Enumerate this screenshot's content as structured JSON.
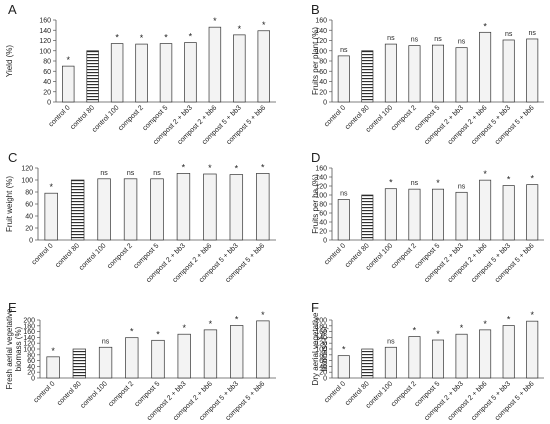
{
  "chart_data": [
    {
      "type": "bar",
      "panel_letter": "A",
      "ylabel": "Yield (%)",
      "ylim": [
        0,
        160
      ],
      "yticks": [
        0,
        20,
        40,
        60,
        80,
        100,
        120,
        140,
        160
      ],
      "categories": [
        "control 0",
        "control 80",
        "control 100",
        "compost 2",
        "compost 5",
        "compost 2 + bb3",
        "compost 2 + bb6",
        "compost 5 + bb3",
        "compost 5 + bb6"
      ],
      "values": [
        70,
        100,
        114,
        113,
        114,
        116,
        146,
        131,
        139
      ],
      "annotations": [
        "*",
        "",
        "*",
        "*",
        "*",
        "*",
        "*",
        "*",
        "*"
      ]
    },
    {
      "type": "bar",
      "panel_letter": "B",
      "ylabel": "Fruits per plant (%)",
      "ylim": [
        0,
        160
      ],
      "yticks": [
        0,
        20,
        40,
        60,
        80,
        100,
        120,
        140,
        160
      ],
      "categories": [
        "control 0",
        "control 80",
        "control 100",
        "compost 2",
        "compost 5",
        "compost 2 + bb3",
        "compost 2 + bb6",
        "compost 5 + bb3",
        "compost 5 + bb6"
      ],
      "values": [
        90,
        100,
        113,
        110,
        111,
        106,
        136,
        121,
        123
      ],
      "annotations": [
        "ns",
        "",
        "ns",
        "ns",
        "ns",
        "ns",
        "*",
        "ns",
        "ns"
      ]
    },
    {
      "type": "bar",
      "panel_letter": "C",
      "ylabel": "Fruit weight (%)",
      "ylim": [
        0,
        120
      ],
      "yticks": [
        0,
        20,
        40,
        60,
        80,
        100,
        120
      ],
      "categories": [
        "control 0",
        "control 80",
        "control 100",
        "compost 2",
        "compost 5",
        "compost 2 + bb3",
        "compost 2 + bb6",
        "compost 5 + bb3",
        "compost 5 + bb6"
      ],
      "values": [
        78,
        100,
        102,
        102,
        102,
        111,
        110,
        109,
        111
      ],
      "annotations": [
        "*",
        "",
        "ns",
        "ns",
        "ns",
        "*",
        "*",
        "*",
        "*"
      ]
    },
    {
      "type": "bar",
      "panel_letter": "D",
      "ylabel": "Fruits per  ha (%)",
      "ylim": [
        0,
        160
      ],
      "yticks": [
        0,
        20,
        40,
        60,
        80,
        100,
        120,
        140,
        160
      ],
      "categories": [
        "control 0",
        "control 80",
        "control 100",
        "compost 2",
        "compost 5",
        "compost 2 + bb3",
        "compost 2 + bb6",
        "compost 5 + bb3",
        "compost 5 + bb6"
      ],
      "values": [
        90,
        100,
        114,
        113,
        113,
        106,
        133,
        121,
        123
      ],
      "annotations": [
        "ns",
        "",
        "*",
        "ns",
        "*",
        "ns",
        "*",
        "*",
        "*"
      ]
    },
    {
      "type": "bar",
      "panel_letter": "E",
      "ylabel": "Fresh aerial vegetative biomass (%)",
      "ylim": [
        0,
        200
      ],
      "yticks": [
        0,
        20,
        40,
        60,
        80,
        100,
        120,
        140,
        160,
        180,
        200
      ],
      "categories": [
        "control 0",
        "control 80",
        "control 100",
        "compost 2",
        "compost 5",
        "compost 2 + bb3",
        "compost 2 + bb6",
        "compost 5 + bb3",
        "compost 5 + bb6"
      ],
      "values": [
        73,
        100,
        106,
        139,
        130,
        151,
        166,
        181,
        197
      ],
      "annotations": [
        "*",
        "",
        "ns",
        "*",
        "*",
        "*",
        "*",
        "*",
        "*"
      ]
    },
    {
      "type": "bar",
      "panel_letter": "F",
      "ylabel": "Dry aerial vegetative biomass (%)",
      "ylim": [
        0,
        200
      ],
      "yticks": [
        0,
        20,
        40,
        60,
        80,
        100,
        120,
        140,
        160,
        180,
        200
      ],
      "categories": [
        "control 0",
        "control 80",
        "control 100",
        "compost 2",
        "compost 5",
        "compost 2 + bb3",
        "compost 2 + bb6",
        "compost 5 + bb3",
        "compost 5 + bb6"
      ],
      "values": [
        77,
        100,
        106,
        143,
        131,
        151,
        166,
        181,
        196
      ],
      "annotations": [
        "*",
        "",
        "ns",
        "*",
        "*",
        "*",
        "*",
        "*",
        "*"
      ]
    }
  ],
  "colors": {
    "bar_fill": "#f3f3f3",
    "bar_stroke": "#333333",
    "axis": "#555555",
    "hatch": "#222222"
  }
}
